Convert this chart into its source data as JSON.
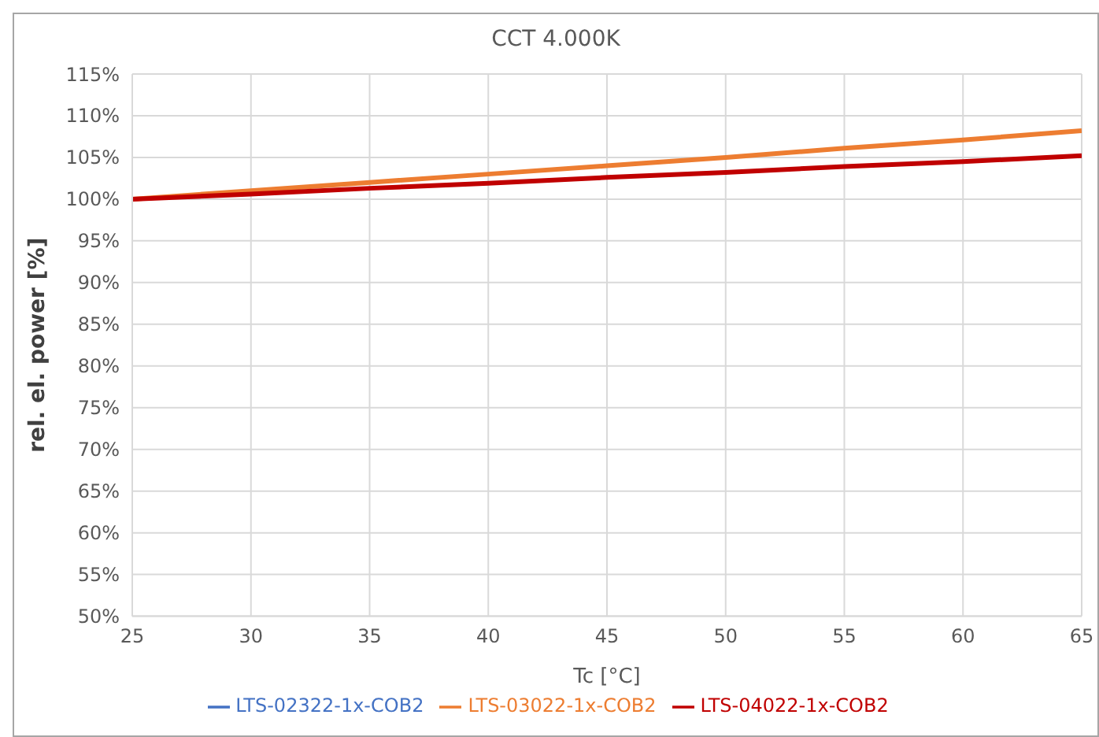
{
  "chart_data": {
    "type": "line",
    "title": "CCT 4.000K",
    "xlabel": "Tc [°C]",
    "ylabel": "rel. el. power [%]",
    "x": [
      25,
      30,
      35,
      40,
      45,
      50,
      55,
      60,
      65
    ],
    "series": [
      {
        "name": "LTS-02322-1x-COB2",
        "color": "#4472c4",
        "values": [
          null,
          null,
          null,
          null,
          null,
          null,
          null,
          null,
          null
        ]
      },
      {
        "name": "LTS-03022-1x-COB2",
        "color": "#ed7d31",
        "values": [
          100,
          101,
          102,
          103,
          104,
          105,
          106.1,
          107.1,
          108.2
        ]
      },
      {
        "name": "LTS-04022-1x-COB2",
        "color": "#c00000",
        "values": [
          100,
          100.6,
          101.3,
          101.9,
          102.6,
          103.2,
          103.9,
          104.5,
          105.2
        ]
      }
    ],
    "xlim": [
      25,
      65
    ],
    "xticks": [
      25,
      30,
      35,
      40,
      45,
      50,
      55,
      60,
      65
    ],
    "ylim": [
      50,
      115
    ],
    "yticks": [
      {
        "value": 50,
        "label": "50%"
      },
      {
        "value": 55,
        "label": "55%"
      },
      {
        "value": 60,
        "label": "60%"
      },
      {
        "value": 65,
        "label": "65%"
      },
      {
        "value": 70,
        "label": "70%"
      },
      {
        "value": 75,
        "label": "75%"
      },
      {
        "value": 80,
        "label": "80%"
      },
      {
        "value": 85,
        "label": "85%"
      },
      {
        "value": 90,
        "label": "90%"
      },
      {
        "value": 95,
        "label": "95%"
      },
      {
        "value": 100,
        "label": "100%"
      },
      {
        "value": 105,
        "label": "105%"
      },
      {
        "value": 110,
        "label": "110%"
      },
      {
        "value": 115,
        "label": "115%"
      }
    ],
    "grid": true,
    "legend": "bottom",
    "marker": "none",
    "line_style": "solid"
  }
}
